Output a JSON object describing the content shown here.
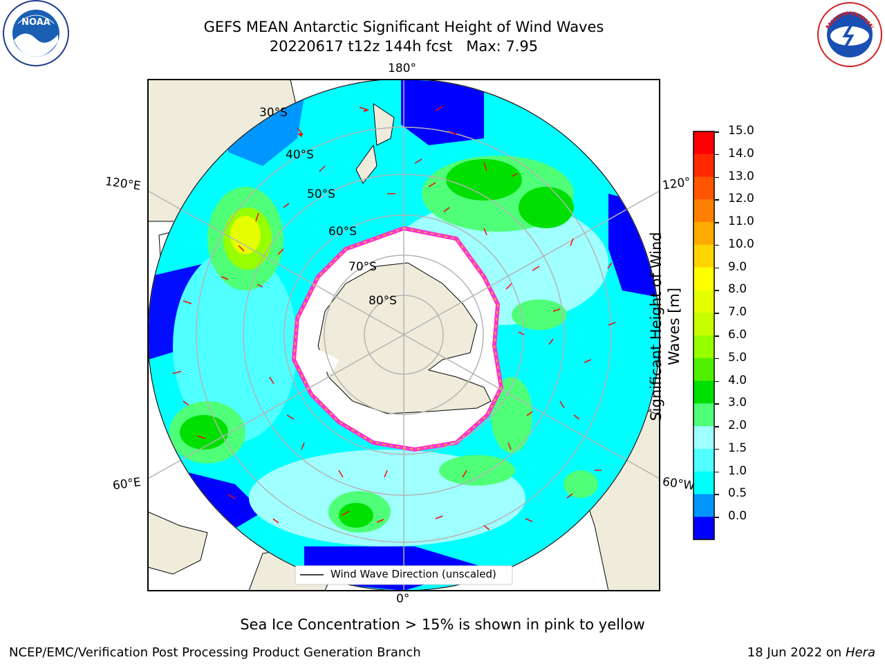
{
  "title": {
    "line1": "GEFS MEAN Antarctic Significant Height of Wind Waves",
    "line2": "20220617 t12z 144h fcst   Max: 7.95"
  },
  "map": {
    "lon_labels": {
      "top": "180°",
      "bottom": "0°",
      "left_upper": "120°E",
      "right_upper": "120°",
      "left_lower": "60°E",
      "right_lower": "60°W"
    },
    "lat_labels": [
      "30°S",
      "40°S",
      "50°S",
      "60°S",
      "70°S",
      "80°S"
    ],
    "legend_label": "Wind Wave Direction (unscaled)",
    "colors": {
      "land": "#efecdc",
      "ocean_high_lat": "#00ffff",
      "arrow": "#ff0000",
      "grid": "#b4b4b4",
      "ice_edge": "#ff33cc"
    }
  },
  "colorbar": {
    "title": "Significant Height of Wind Waves [m]",
    "title_lines": [
      "Significant Height of Wind",
      "Waves [m]"
    ],
    "ticks": [
      "15.0",
      "14.0",
      "13.0",
      "12.0",
      "11.0",
      "10.0",
      "9.0",
      "8.0",
      "7.0",
      "6.0",
      "5.0",
      "4.0",
      "3.0",
      "2.0",
      "1.5",
      "1.0",
      "0.5",
      "0.0"
    ],
    "colors_top_to_bottom": [
      "#ff0000",
      "#ff2a00",
      "#ff5500",
      "#ff8000",
      "#ffaa00",
      "#ffd400",
      "#ffff00",
      "#e6ff00",
      "#c8ff00",
      "#96ff00",
      "#50f000",
      "#00e000",
      "#50ff78",
      "#a0ffff",
      "#50ffff",
      "#00ffff",
      "#0096ff",
      "#0000ff"
    ]
  },
  "caption": "Sea Ice Concentration > 15% is shown in pink to yellow",
  "footer": {
    "left": "NCEP/EMC/Verification Post Processing Product Generation Branch",
    "date": "18 Jun 2022 on",
    "machine": "Hera"
  },
  "logos": {
    "noaa": {
      "label": "NOAA"
    },
    "nws": {
      "label": "NATIONAL WEATHER SERVICE"
    }
  }
}
